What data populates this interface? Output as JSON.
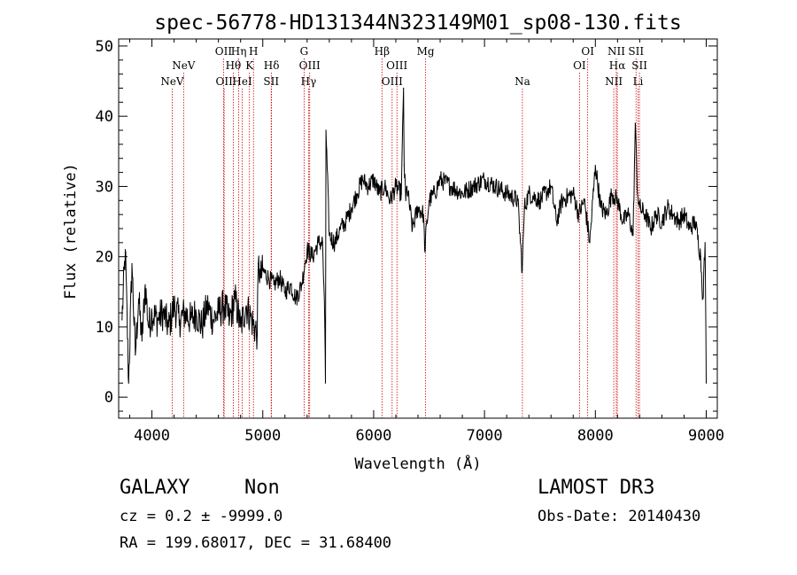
{
  "chart_data": {
    "type": "line",
    "title": "spec-56778-HD131344N323149M01_sp08-130.fits",
    "xlabel": "Wavelength (Å)",
    "ylabel": "Flux (relative)",
    "xlim": [
      3700,
      9100
    ],
    "ylim": [
      -3,
      51
    ],
    "xticks": [
      4000,
      5000,
      6000,
      7000,
      8000,
      9000
    ],
    "yticks": [
      0,
      10,
      20,
      30,
      40,
      50
    ],
    "grid": false,
    "series": [
      {
        "name": "flux",
        "color": "#000000",
        "x": [
          3730,
          3760,
          3790,
          3820,
          3850,
          3880,
          3910,
          3940,
          3970,
          4000,
          4050,
          4100,
          4150,
          4200,
          4250,
          4300,
          4350,
          4400,
          4450,
          4500,
          4550,
          4600,
          4650,
          4700,
          4750,
          4800,
          4850,
          4900,
          4950,
          4960,
          4980,
          5000,
          5050,
          5100,
          5150,
          5200,
          5250,
          5300,
          5350,
          5380,
          5400,
          5450,
          5500,
          5540,
          5560,
          5565,
          5570,
          5600,
          5650,
          5700,
          5750,
          5800,
          5850,
          5900,
          5950,
          6000,
          6050,
          6100,
          6150,
          6200,
          6250,
          6270,
          6275,
          6290,
          6300,
          6350,
          6400,
          6450,
          6460,
          6500,
          6550,
          6600,
          6700,
          6800,
          6900,
          7000,
          7100,
          7200,
          7300,
          7340,
          7360,
          7400,
          7500,
          7600,
          7650,
          7700,
          7800,
          7850,
          7900,
          7950,
          8000,
          8050,
          8100,
          8150,
          8200,
          8250,
          8300,
          8340,
          8360,
          8380,
          8400,
          8450,
          8500,
          8550,
          8600,
          8650,
          8700,
          8750,
          8800,
          8850,
          8900,
          8950,
          8970,
          8990,
          9000
        ],
        "y": [
          11,
          21,
          2,
          19,
          6,
          14,
          8,
          16,
          10,
          12,
          11,
          12,
          10,
          13,
          11,
          12,
          11,
          12,
          10,
          13,
          11,
          12,
          13,
          11,
          14,
          10,
          13,
          11,
          9,
          19,
          17,
          18,
          17,
          16,
          17,
          15,
          16,
          14,
          16,
          19,
          21,
          20,
          22,
          22,
          10,
          2,
          38,
          23,
          22,
          24,
          25,
          27,
          29,
          31,
          30,
          31,
          29,
          30,
          28,
          30,
          29,
          44,
          33,
          28,
          30,
          24,
          27,
          26,
          21,
          28,
          29,
          31,
          30,
          29,
          30,
          31,
          30,
          29,
          28,
          18,
          27,
          29,
          28,
          30,
          25,
          28,
          29,
          26,
          28,
          22,
          33,
          27,
          26,
          29,
          28,
          25,
          26,
          23,
          39,
          29,
          27,
          26,
          24,
          26,
          25,
          27,
          26,
          25,
          26,
          24,
          25,
          20,
          14,
          22,
          2
        ]
      }
    ],
    "line_markers": [
      {
        "label": "NeV",
        "x": 4183,
        "row": 3
      },
      {
        "label": "NeV",
        "x": 4286,
        "row": 2
      },
      {
        "label": "OII",
        "x": 4646,
        "row": 1
      },
      {
        "label": "OII",
        "x": 4652,
        "row": 3
      },
      {
        "label": "Hθ",
        "x": 4734,
        "row": 2
      },
      {
        "label": "Hη",
        "x": 4783,
        "row": 1
      },
      {
        "label": "HeI",
        "x": 4815,
        "row": 3
      },
      {
        "label": "K",
        "x": 4880,
        "row": 2
      },
      {
        "label": "H",
        "x": 4916,
        "row": 1
      },
      {
        "label": "Hδ",
        "x": 5079,
        "row": 2
      },
      {
        "label": "SII",
        "x": 5076,
        "row": 3
      },
      {
        "label": "G",
        "x": 5373,
        "row": 1
      },
      {
        "label": "OIII",
        "x": 5423,
        "row": 2
      },
      {
        "label": "Hγ",
        "x": 5413,
        "row": 3
      },
      {
        "label": "Hβ",
        "x": 6075,
        "row": 1
      },
      {
        "label": "OIII",
        "x": 6210,
        "row": 2
      },
      {
        "label": "OIII",
        "x": 6167,
        "row": 3
      },
      {
        "label": "Mg",
        "x": 6469,
        "row": 1
      },
      {
        "label": "Na",
        "x": 7342,
        "row": 3
      },
      {
        "label": "OI",
        "x": 7931,
        "row": 1
      },
      {
        "label": "OI",
        "x": 7857,
        "row": 2
      },
      {
        "label": "NII",
        "x": 8189,
        "row": 1
      },
      {
        "label": "Hα",
        "x": 8198,
        "row": 2
      },
      {
        "label": "NII",
        "x": 8166,
        "row": 3
      },
      {
        "label": "SII",
        "x": 8367,
        "row": 1
      },
      {
        "label": "SII",
        "x": 8398,
        "row": 2
      },
      {
        "label": "Li",
        "x": 8385,
        "row": 3
      }
    ]
  },
  "info": {
    "object_class": "GALAXY",
    "subclass": "Non",
    "survey": "LAMOST DR3",
    "cz": "cz = 0.2 ± -9999.0",
    "obs_date": "Obs-Date: 20140430",
    "coords": "RA = 199.68017, DEC =  31.68400"
  },
  "colors": {
    "axis": "#000000",
    "spectrum": "#000000",
    "marker_line": "#cc0000"
  }
}
